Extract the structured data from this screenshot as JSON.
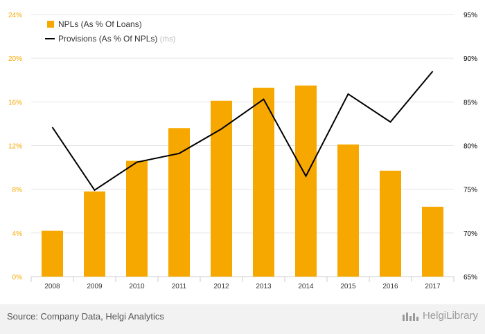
{
  "footer": {
    "source": "Source: Company Data, Helgi Analytics",
    "brand": "HelgiLibrary"
  },
  "colors": {
    "bar": "#f7a800",
    "line": "#000000",
    "left_axis_text": "#f7a800",
    "right_axis_text": "#000000",
    "grid": "#e6e6e6",
    "rhs_note": "#bbbbbb"
  },
  "chart_data": {
    "type": "bar",
    "categories": [
      "2008",
      "2009",
      "2010",
      "2011",
      "2012",
      "2013",
      "2014",
      "2015",
      "2016",
      "2017"
    ],
    "series": [
      {
        "name": "NPLs (As % Of Loans)",
        "type": "bar",
        "axis": "left",
        "values": [
          4.2,
          7.8,
          10.6,
          13.6,
          16.1,
          17.3,
          17.5,
          12.1,
          9.7,
          6.4
        ]
      },
      {
        "name": "Provisions (As % Of NPLs)",
        "type": "line",
        "axis": "right",
        "values": [
          82.1,
          74.9,
          78.1,
          79.1,
          81.9,
          85.3,
          76.5,
          85.9,
          82.7,
          88.5
        ]
      }
    ],
    "left_axis": {
      "ylim": [
        0,
        24
      ],
      "ticks": [
        "0%",
        "4%",
        "8%",
        "12%",
        "16%",
        "20%",
        "24%"
      ]
    },
    "right_axis": {
      "ylim": [
        65,
        95
      ],
      "ticks": [
        "65%",
        "70%",
        "75%",
        "80%",
        "85%",
        "90%",
        "95%"
      ]
    },
    "legend": {
      "position": "top-left",
      "rhs_note": "(rhs)"
    },
    "grid": true
  }
}
